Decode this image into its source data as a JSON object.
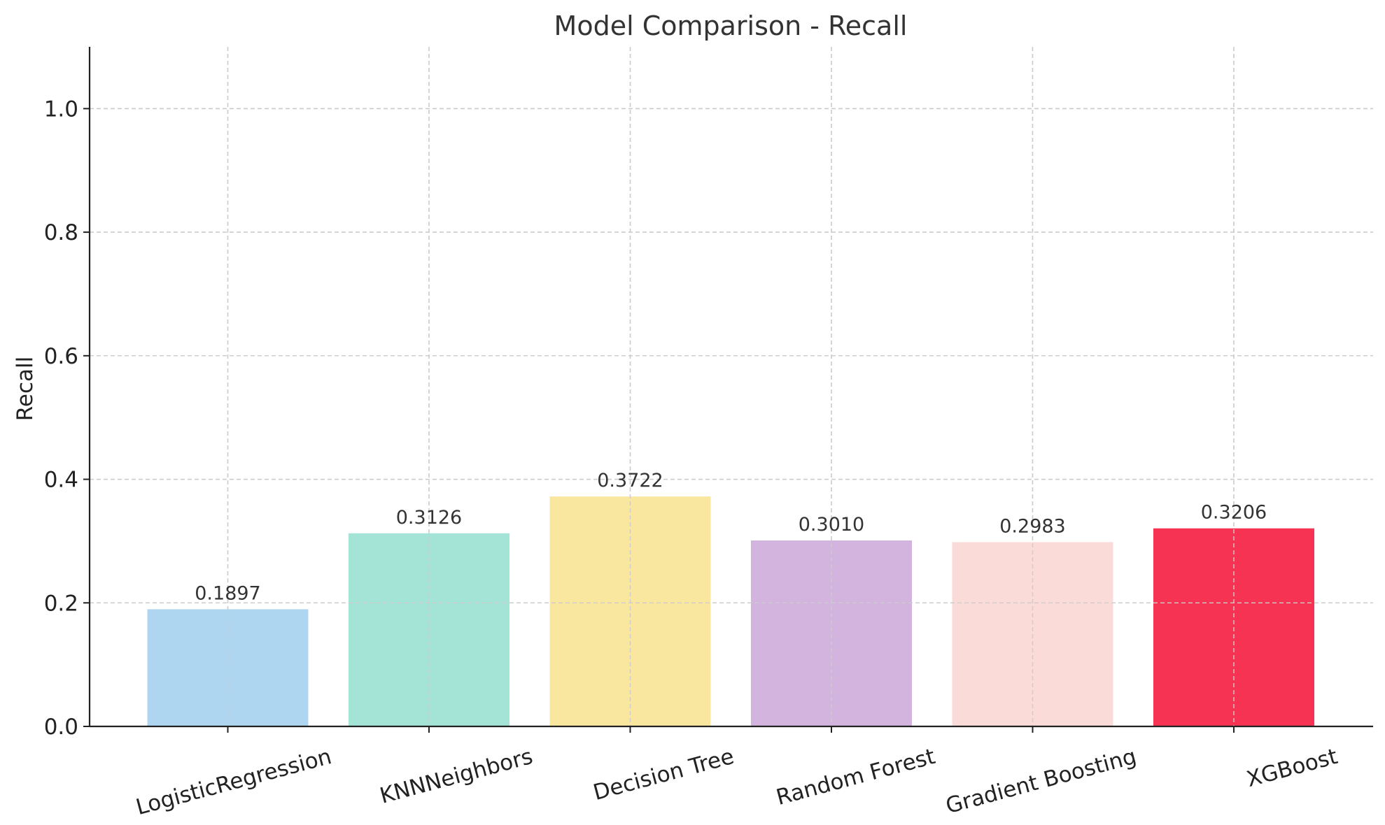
{
  "chart_data": {
    "type": "bar",
    "title": "Model Comparison - Recall",
    "xlabel": "",
    "ylabel": "Recall",
    "categories": [
      "LogisticRegression",
      "KNNNeighbors",
      "Decision Tree",
      "Random Forest",
      "Gradient Boosting",
      "XGBoost"
    ],
    "values": [
      0.1897,
      0.3126,
      0.3722,
      0.301,
      0.2983,
      0.3206
    ],
    "value_labels": [
      "0.1897",
      "0.3126",
      "0.3722",
      "0.3010",
      "0.2983",
      "0.3206"
    ],
    "colors": [
      "#aed6f1",
      "#a3e4d7",
      "#f9e79f",
      "#d2b4de",
      "#fadbd8",
      "#f63353"
    ],
    "ylim": [
      0,
      1.1
    ],
    "yticks": [
      0.0,
      0.2,
      0.4,
      0.6,
      0.8,
      1.0
    ],
    "ytick_labels": [
      "0.0",
      "0.2",
      "0.4",
      "0.6",
      "0.8",
      "1.0"
    ],
    "grid": true,
    "legend": "none"
  }
}
